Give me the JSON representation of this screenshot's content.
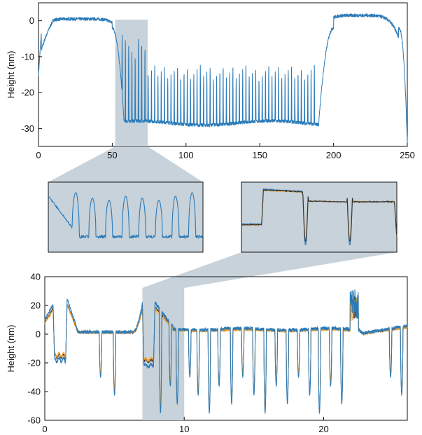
{
  "chart_data": [
    {
      "id": "top",
      "type": "line",
      "ylabel": "Height (nm)",
      "xlim": [
        0,
        250
      ],
      "ylim": [
        -35,
        5
      ],
      "xticks": [
        0,
        50,
        100,
        150,
        200,
        250
      ],
      "yticks": [
        0,
        -10,
        -20,
        -30
      ],
      "highlight_x": [
        52,
        74
      ],
      "series": [
        {
          "color": "#2a7ab8",
          "description": "dome to ~0 nm at both ends, trench floor ~-28 to -30 nm between x=55 and x=190 with ~60 periodic spikes rising to about -13 nm (up to -4 nm near x=55-70); drops to -34 nm at x=250"
        }
      ]
    },
    {
      "id": "inset_left",
      "type": "line",
      "zoom_of": "top",
      "x_range": [
        52,
        74
      ],
      "peaks": 8,
      "series_colors": [
        "#2a7ab8"
      ]
    },
    {
      "id": "inset_right",
      "type": "line",
      "zoom_of": "bottom",
      "x_range": [
        7,
        10
      ],
      "series_colors": [
        "#2a7ab8",
        "#f0a030",
        "#333333"
      ]
    },
    {
      "id": "bottom",
      "type": "line",
      "ylabel": "Height (nm)",
      "xlim": [
        0,
        26
      ],
      "ylim": [
        -60,
        40
      ],
      "xticks": [
        0,
        10,
        20
      ],
      "yticks": [
        40,
        20,
        0,
        -20,
        -40,
        -60
      ],
      "highlight_x": [
        7,
        10
      ],
      "series": [
        {
          "color": "#2a7ab8"
        },
        {
          "color": "#f0a030"
        },
        {
          "color": "#333333"
        }
      ],
      "dips_x": [
        4,
        5,
        8.3,
        9,
        9.5,
        10.4,
        11,
        11.8,
        12.5,
        13.4,
        14.2,
        15,
        15.8,
        16.6,
        17.4,
        18.2,
        19,
        19.7,
        20.5,
        21.3,
        24.8,
        25.6
      ],
      "dip_depth": [
        -30,
        -55
      ]
    }
  ]
}
